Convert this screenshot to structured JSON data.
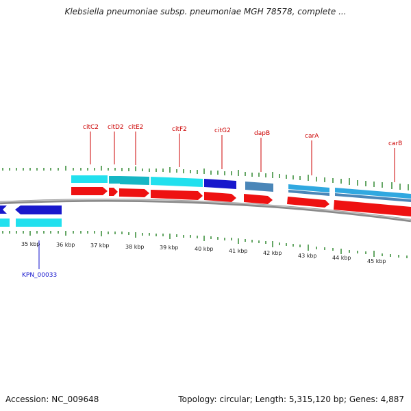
{
  "title": "Klebsiella pneumoniae subsp. pneumoniae MGH 78578, complete ...",
  "footer": {
    "accession": "Accession: NC_009648",
    "summary": "Topology: circular; Length: 5,315,120 bp; Genes: 4,887"
  },
  "colors": {
    "gene_label": "#cc0000",
    "locus_label": "#1010cc",
    "cds_red": "#ee1111",
    "cyan": "#22e0ee",
    "teal": "#16b6c4",
    "blue": "#1818cc",
    "steel": "#4a86b8",
    "sky": "#30a8e0",
    "tick": "#117711",
    "backbone": "#8a8a8a"
  },
  "gene_labels": [
    "citC2",
    "citD2",
    "citE2",
    "citF2",
    "citG2",
    "dapB",
    "carA",
    "carB"
  ],
  "locus_labels": [
    "KPN_00033"
  ],
  "kbp_labels": [
    "35 kbp",
    "36 kbp",
    "37 kbp",
    "38 kbp",
    "39 kbp",
    "40 kbp",
    "41 kbp",
    "42 kbp",
    "43 kbp",
    "44 kbp",
    "45 kbp"
  ]
}
